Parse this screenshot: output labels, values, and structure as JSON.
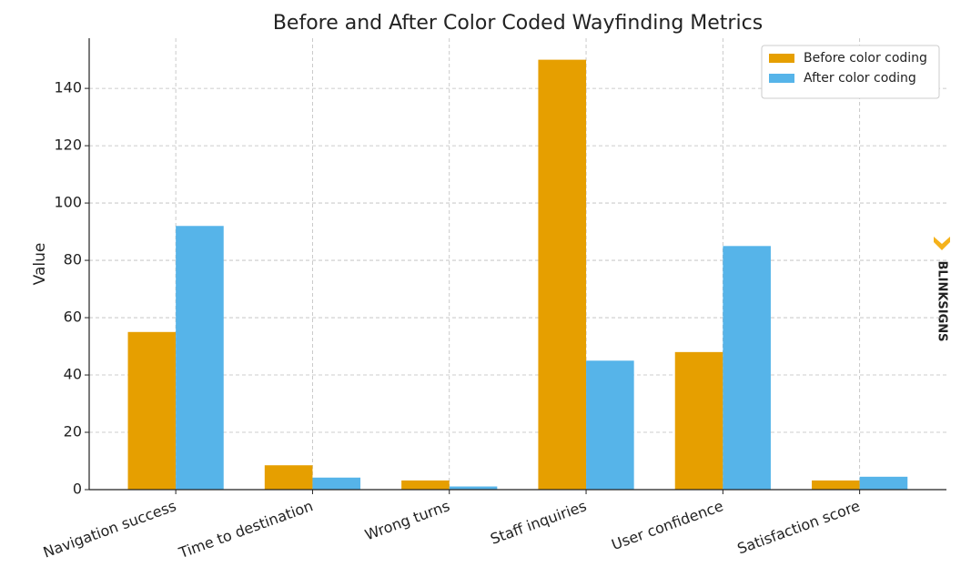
{
  "chart_data": {
    "type": "bar",
    "title": "Before and After Color Coded Wayfinding Metrics",
    "y_label": "Value",
    "categories": [
      "Navigation success",
      "Time to destination",
      "Wrong turns",
      "Staff inquiries",
      "User confidence",
      "Satisfaction score"
    ],
    "series": [
      {
        "name": "Before color coding",
        "color": "#e69f00",
        "values": [
          55,
          8.5,
          3.2,
          150,
          48,
          3.2
        ]
      },
      {
        "name": "After color coding",
        "color": "#56b4e9",
        "values": [
          92,
          4.2,
          1.1,
          45,
          85,
          4.5
        ]
      }
    ],
    "ylim": [
      0,
      157.5
    ],
    "yticks": [
      0,
      20,
      40,
      60,
      80,
      100,
      120,
      140
    ],
    "grid": true,
    "legend": "upper right",
    "watermark": "BLINKSIGNS"
  }
}
